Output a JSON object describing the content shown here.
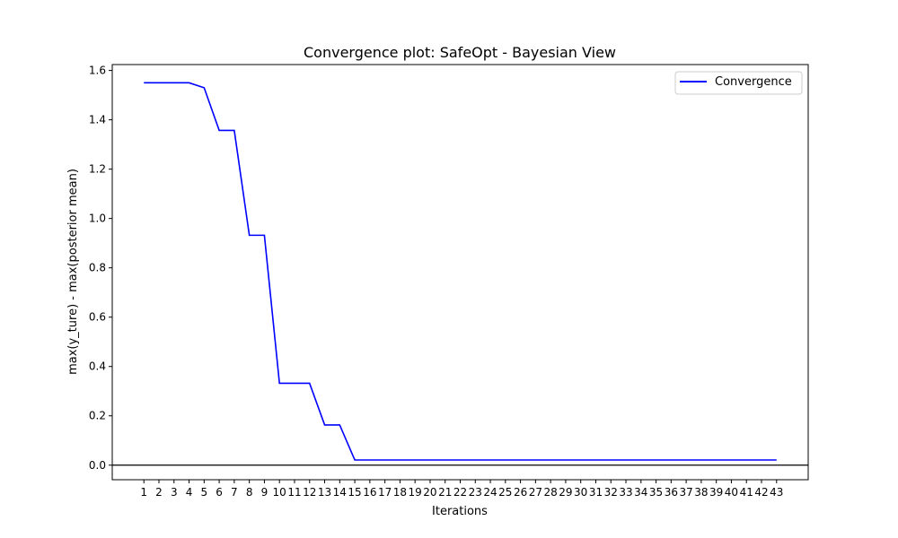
{
  "chart_data": {
    "type": "line",
    "title": "Convergence plot: SafeOpt - Bayesian View",
    "xlabel": "Iterations",
    "ylabel": "max(y_ture) - max(posterior mean)",
    "x": [
      1,
      2,
      3,
      4,
      5,
      6,
      7,
      8,
      9,
      10,
      11,
      12,
      13,
      14,
      15,
      16,
      17,
      18,
      19,
      20,
      21,
      22,
      23,
      24,
      25,
      26,
      27,
      28,
      29,
      30,
      31,
      32,
      33,
      34,
      35,
      36,
      37,
      38,
      39,
      40,
      41,
      42,
      43
    ],
    "series": [
      {
        "name": "Convergence",
        "color": "#0000ff",
        "values": [
          1.55,
          1.55,
          1.55,
          1.55,
          1.53,
          1.357,
          1.357,
          0.932,
          0.932,
          0.332,
          0.332,
          0.332,
          0.163,
          0.163,
          0.021,
          0.021,
          0.021,
          0.021,
          0.021,
          0.021,
          0.021,
          0.021,
          0.021,
          0.021,
          0.021,
          0.021,
          0.021,
          0.021,
          0.021,
          0.021,
          0.021,
          0.021,
          0.021,
          0.021,
          0.021,
          0.021,
          0.021,
          0.021,
          0.021,
          0.021,
          0.021,
          0.021,
          0.021
        ]
      }
    ],
    "baseline": 0,
    "xlim": [
      -1.1,
      45.1
    ],
    "ylim": [
      -0.059,
      1.624
    ],
    "yticks": [
      0.0,
      0.2,
      0.4,
      0.6,
      0.8,
      1.0,
      1.2,
      1.4,
      1.6
    ],
    "ytick_labels": [
      "0.0",
      "0.2",
      "0.4",
      "0.6",
      "0.8",
      "1.0",
      "1.2",
      "1.4",
      "1.6"
    ],
    "grid": false,
    "legend_position": "top-right"
  }
}
